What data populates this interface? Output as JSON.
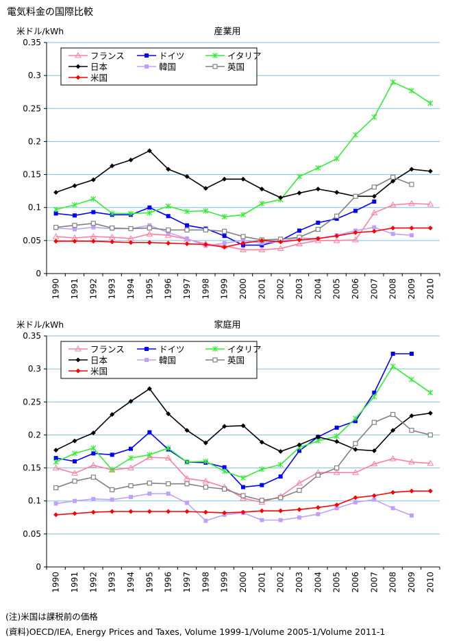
{
  "page_title": "電気料金の国際比較",
  "notes": {
    "note": "(注)米国は課税前の価格",
    "source": "(資料)OECD/IEA, Energy Prices and Taxes, Volume 1999-1/Volume 2005-1/Volume 2011-1"
  },
  "colors": {
    "france": "#ff7f9f",
    "germany": "#0000ff",
    "italy": "#33ee33",
    "japan": "#000000",
    "korea": "#c0a0ff",
    "uk": "#808080",
    "usa": "#ff0000",
    "grid": "#7fbfdf"
  },
  "chart_data": [
    {
      "type": "line",
      "title": "産業用",
      "ylabel": "米ドル/kWh",
      "xlabel": "",
      "ylim": [
        0,
        0.35
      ],
      "yticks": [
        0,
        0.05,
        0.1,
        0.15,
        0.2,
        0.25,
        0.3,
        0.35
      ],
      "ytick_labels": [
        "0",
        "0.05",
        "0.1",
        "0.15",
        "0.2",
        "0.25",
        "0.3",
        "0.35"
      ],
      "x": [
        "1990",
        "1991",
        "1992",
        "1993",
        "1994",
        "1995",
        "1996",
        "1997",
        "1998",
        "1999",
        "2000",
        "2001",
        "2002",
        "2003",
        "2004",
        "2005",
        "2006",
        "2007",
        "2008",
        "2009",
        "2010"
      ],
      "legend_position": "top-left",
      "series": [
        {
          "key": "france",
          "name": "フランス",
          "marker": "triangle",
          "values": [
            0.056,
            0.054,
            0.056,
            0.055,
            0.053,
            0.06,
            0.058,
            0.052,
            0.045,
            0.042,
            0.036,
            0.036,
            0.038,
            0.045,
            0.05,
            0.05,
            0.051,
            0.092,
            0.104,
            0.106,
            0.105
          ]
        },
        {
          "key": "germany",
          "name": "ドイツ",
          "marker": "square",
          "values": [
            0.091,
            0.088,
            0.093,
            0.089,
            0.089,
            0.1,
            0.087,
            0.073,
            0.068,
            0.057,
            0.043,
            0.043,
            0.05,
            0.065,
            0.077,
            0.083,
            0.095,
            0.109,
            null,
            null,
            null
          ]
        },
        {
          "key": "italy",
          "name": "イタリア",
          "marker": "star",
          "values": [
            0.097,
            0.104,
            0.113,
            0.091,
            0.091,
            0.092,
            0.102,
            0.094,
            0.095,
            0.086,
            0.089,
            0.106,
            0.112,
            0.147,
            0.16,
            0.174,
            0.21,
            0.237,
            0.29,
            0.277,
            0.258
          ]
        },
        {
          "key": "japan",
          "name": "日本",
          "marker": "diamond",
          "values": [
            0.123,
            0.133,
            0.142,
            0.163,
            0.172,
            0.186,
            0.158,
            0.147,
            0.129,
            0.143,
            0.143,
            0.128,
            0.115,
            0.122,
            0.128,
            0.123,
            0.117,
            0.117,
            0.14,
            0.158,
            0.155
          ]
        },
        {
          "key": "korea",
          "name": "韓国",
          "marker": "square",
          "values": [
            0.069,
            0.067,
            0.07,
            0.068,
            0.068,
            0.073,
            0.062,
            0.053,
            0.042,
            0.046,
            0.05,
            0.046,
            0.049,
            0.054,
            0.053,
            0.058,
            0.065,
            0.07,
            0.06,
            0.058,
            null
          ]
        },
        {
          "key": "uk",
          "name": "英国",
          "marker": "square-open",
          "values": [
            0.07,
            0.073,
            0.076,
            0.069,
            0.068,
            0.069,
            0.066,
            0.066,
            0.066,
            0.064,
            0.056,
            0.051,
            0.052,
            0.055,
            0.067,
            0.087,
            0.117,
            0.131,
            0.146,
            0.135,
            null
          ]
        },
        {
          "key": "usa",
          "name": "米国",
          "marker": "diamond",
          "values": [
            0.049,
            0.049,
            0.049,
            0.048,
            0.047,
            0.047,
            0.046,
            0.045,
            0.044,
            0.04,
            0.046,
            0.05,
            0.048,
            0.051,
            0.053,
            0.057,
            0.062,
            0.064,
            0.069,
            0.069,
            0.069
          ]
        }
      ]
    },
    {
      "type": "line",
      "title": "家庭用",
      "ylabel": "米ドル/kWh",
      "xlabel": "",
      "ylim": [
        0,
        0.35
      ],
      "yticks": [
        0,
        0.05,
        0.1,
        0.15,
        0.2,
        0.25,
        0.3,
        0.35
      ],
      "ytick_labels": [
        "0",
        "0.05",
        "0.1",
        "0.15",
        "0.2",
        "0.25",
        "0.3",
        "0.35"
      ],
      "x": [
        "1990",
        "1991",
        "1992",
        "1993",
        "1994",
        "1995",
        "1996",
        "1997",
        "1998",
        "1999",
        "2000",
        "2001",
        "2002",
        "2003",
        "2004",
        "2005",
        "2006",
        "2007",
        "2008",
        "2009",
        "2010"
      ],
      "legend_position": "top-left",
      "series": [
        {
          "key": "france",
          "name": "フランス",
          "marker": "triangle",
          "values": [
            0.15,
            0.142,
            0.154,
            0.147,
            0.15,
            0.166,
            0.165,
            0.134,
            0.13,
            0.121,
            0.104,
            0.098,
            0.107,
            0.127,
            0.143,
            0.143,
            0.143,
            0.156,
            0.164,
            0.159,
            0.157
          ]
        },
        {
          "key": "germany",
          "name": "ドイツ",
          "marker": "square",
          "values": [
            0.165,
            0.16,
            0.172,
            0.17,
            0.179,
            0.204,
            0.178,
            0.159,
            0.158,
            0.151,
            0.121,
            0.124,
            0.137,
            0.176,
            0.197,
            0.211,
            0.221,
            0.264,
            0.323,
            0.323,
            null
          ]
        },
        {
          "key": "italy",
          "name": "イタリア",
          "marker": "star",
          "values": [
            0.159,
            0.172,
            0.18,
            0.147,
            0.165,
            0.17,
            0.18,
            0.159,
            0.16,
            0.145,
            0.135,
            0.148,
            0.155,
            0.181,
            0.191,
            0.198,
            0.225,
            0.258,
            0.304,
            0.284,
            0.264
          ]
        },
        {
          "key": "japan",
          "name": "日本",
          "marker": "diamond",
          "values": [
            0.177,
            0.191,
            0.203,
            0.231,
            0.251,
            0.27,
            0.232,
            0.207,
            0.188,
            0.213,
            0.214,
            0.189,
            0.175,
            0.185,
            0.197,
            0.19,
            0.178,
            0.176,
            0.207,
            0.229,
            0.233
          ]
        },
        {
          "key": "korea",
          "name": "韓国",
          "marker": "square",
          "values": [
            0.096,
            0.1,
            0.103,
            0.102,
            0.106,
            0.111,
            0.111,
            0.097,
            0.07,
            0.079,
            0.082,
            0.071,
            0.071,
            0.075,
            0.08,
            0.089,
            0.098,
            0.102,
            0.089,
            0.078,
            null
          ]
        },
        {
          "key": "uk",
          "name": "英国",
          "marker": "square-open",
          "values": [
            0.12,
            0.13,
            0.136,
            0.117,
            0.123,
            0.127,
            0.126,
            0.126,
            0.121,
            0.118,
            0.108,
            0.101,
            0.105,
            0.116,
            0.139,
            0.15,
            0.187,
            0.219,
            0.231,
            0.207,
            0.2
          ]
        },
        {
          "key": "usa",
          "name": "米国",
          "marker": "diamond",
          "values": [
            0.079,
            0.081,
            0.083,
            0.084,
            0.084,
            0.084,
            0.084,
            0.084,
            0.083,
            0.082,
            0.083,
            0.085,
            0.085,
            0.087,
            0.09,
            0.094,
            0.105,
            0.108,
            0.113,
            0.115,
            0.115
          ]
        }
      ]
    }
  ]
}
